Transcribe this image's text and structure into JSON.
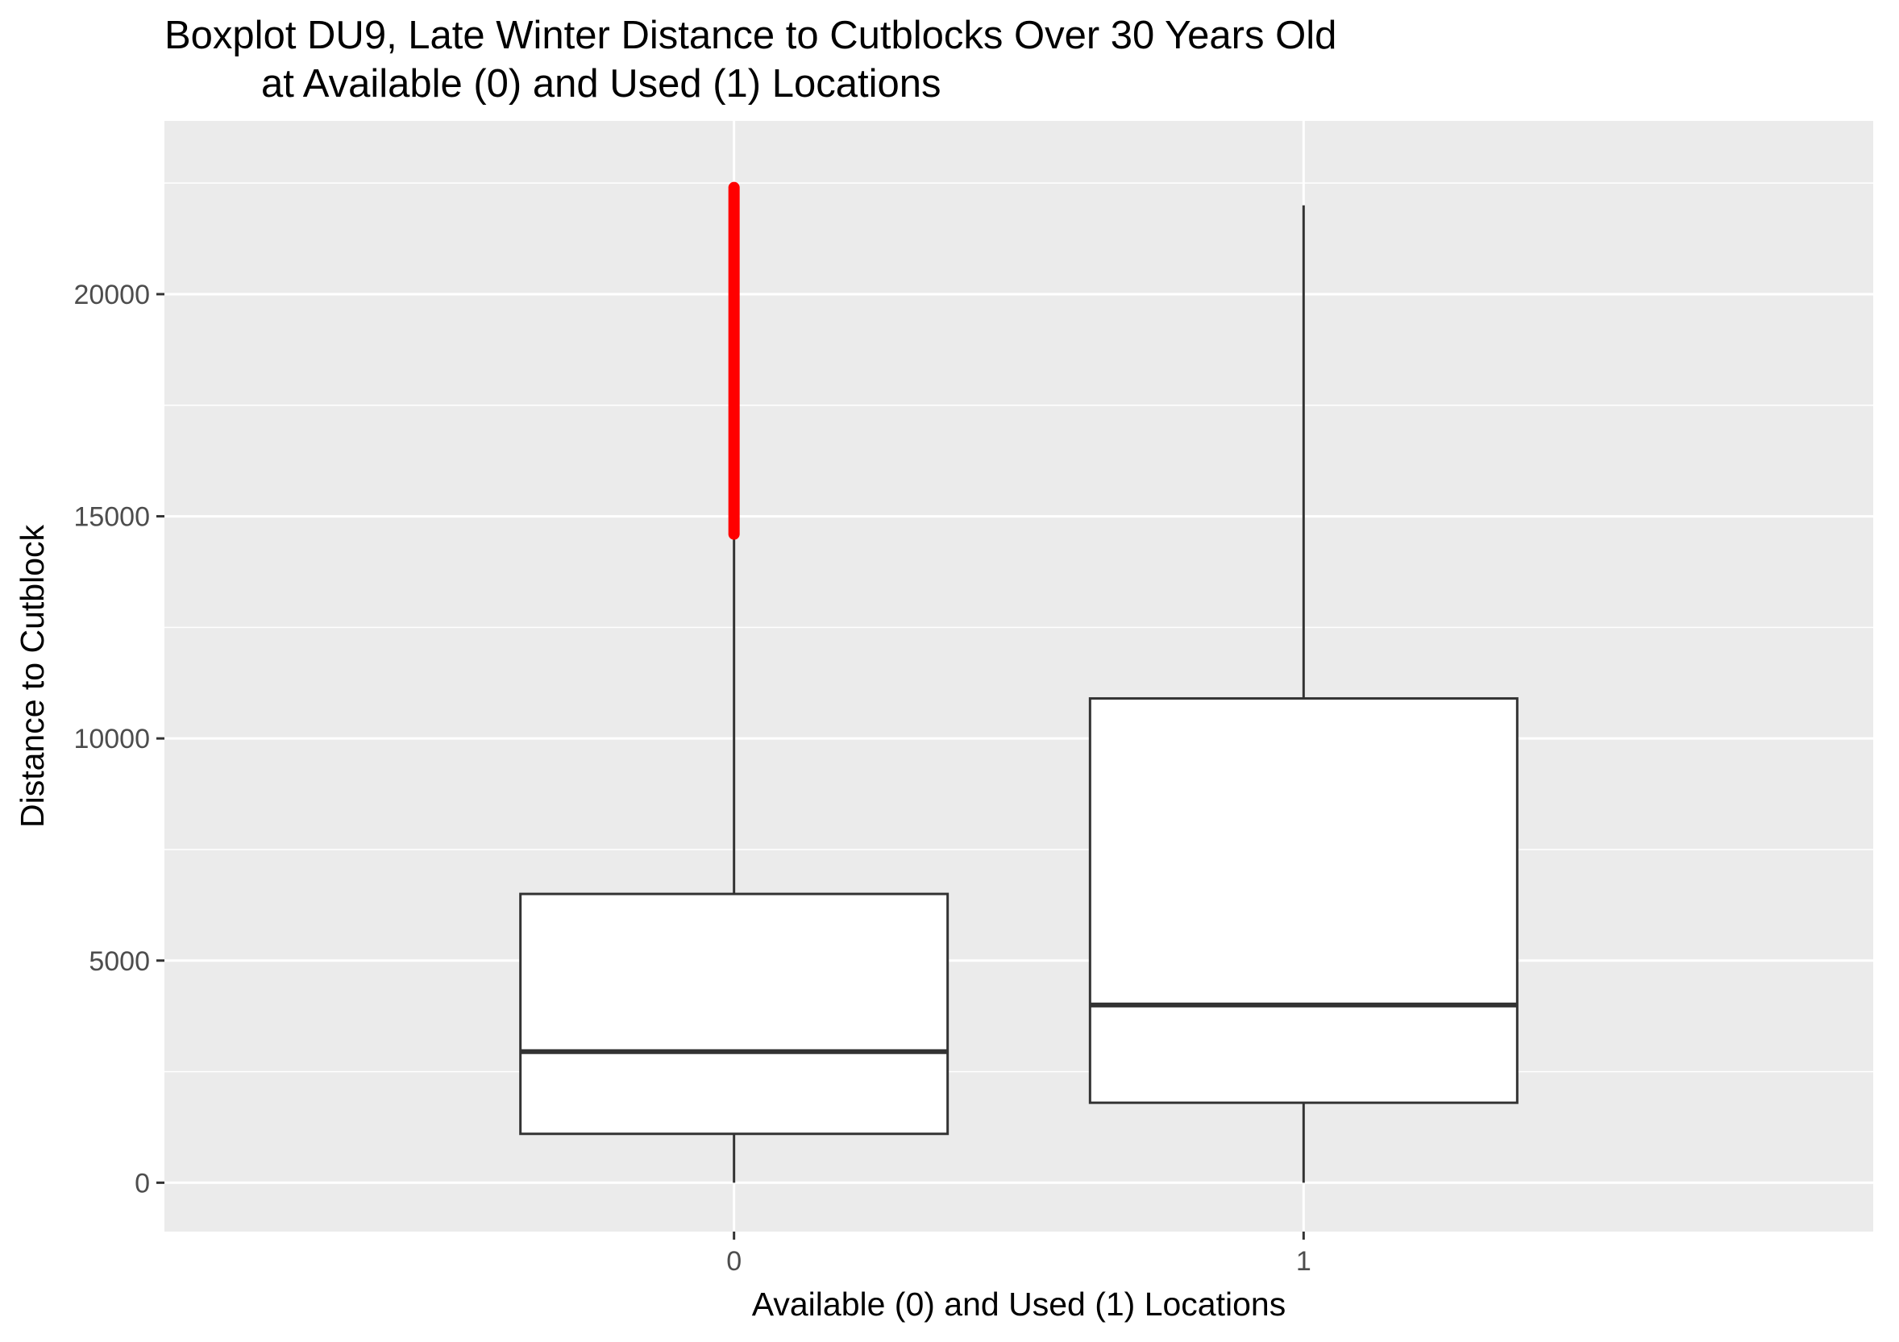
{
  "chart_data": {
    "type": "boxplot",
    "title_lines": [
      "Boxplot DU9, Late Winter Distance to Cutblocks Over 30 Years Old",
      "at Available (0) and Used (1) Locations"
    ],
    "xlabel": "Available (0) and Used (1) Locations",
    "ylabel": "Distance to Cutblock",
    "categories": [
      "0",
      "1"
    ],
    "ylim": [
      -1100,
      23900
    ],
    "yticks": [
      0,
      5000,
      10000,
      15000,
      20000
    ],
    "ytick_labels": [
      "0",
      "5000",
      "10000",
      "15000",
      "20000"
    ],
    "grid": true,
    "boxes": [
      {
        "category": "0",
        "whisker_low": 0,
        "q1": 1100,
        "median": 2950,
        "q3": 6500,
        "whisker_high": 14600,
        "outliers_min": 14600,
        "outliers_max": 22400
      },
      {
        "category": "1",
        "whisker_low": 0,
        "q1": 1800,
        "median": 4000,
        "q3": 10900,
        "whisker_high": 22000
      }
    ],
    "colors": {
      "panel_background": "#ebebeb",
      "grid_major": "#ffffff",
      "box_fill": "#ffffff",
      "box_line": "#333333",
      "outlier": "#ff0000",
      "tick_text": "#4d4d4d"
    }
  }
}
